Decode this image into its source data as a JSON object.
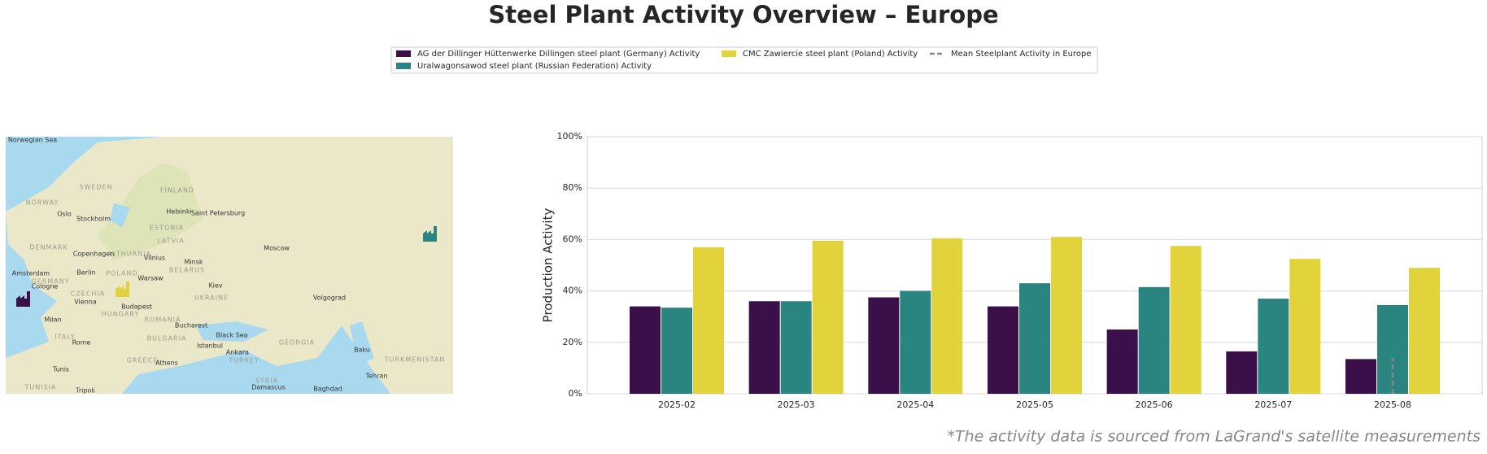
{
  "chart_data": {
    "type": "bar",
    "title": "Steel Plant Activity Overview – Europe",
    "ylabel": "Production Activity",
    "footnote": "*The activity data is sourced from LaGrand's satellite measurements",
    "categories": [
      "2025-02",
      "2025-03",
      "2025-04",
      "2025-05",
      "2025-06",
      "2025-07",
      "2025-08"
    ],
    "series": [
      {
        "name": "AG der Dillinger Hüttenwerke Dillingen steel plant (Germany) Activity",
        "color": "#3b0f4a",
        "values": [
          34,
          36,
          37.5,
          34,
          25,
          16.5,
          13.5
        ]
      },
      {
        "name": "Uralwagonsawod steel plant (Russian Federation) Activity",
        "color": "#2a8480",
        "values": [
          33.5,
          36,
          40,
          43,
          41.5,
          37,
          34.5
        ]
      },
      {
        "name": "CMC Zawiercie steel plant (Poland) Activity",
        "color": "#e2d23c",
        "values": [
          57,
          59.5,
          60.5,
          61,
          57.5,
          52.5,
          49
        ]
      },
      {
        "name": "Mean Steelplant Activity in Europe",
        "color": "#888888",
        "style": "dashed",
        "values": [
          null,
          null,
          null,
          null,
          null,
          null,
          14
        ]
      }
    ],
    "ylim": [
      0,
      100
    ],
    "yticks": [
      {
        "value": 0,
        "label": "0%"
      },
      {
        "value": 20,
        "label": "20%"
      },
      {
        "value": 40,
        "label": "40%"
      },
      {
        "value": 60,
        "label": "60%"
      },
      {
        "value": 80,
        "label": "80%"
      },
      {
        "value": 100,
        "label": "100%"
      }
    ],
    "grid": true,
    "map_labels": [
      "Norwegian Sea",
      "SWEDEN",
      "FINLAND",
      "NORWAY",
      "Oslo",
      "Stockholm",
      "Helsinki",
      "Saint Petersburg",
      "ESTONIA",
      "LATVIA",
      "DENMARK",
      "Copenhagen",
      "LITHUANIA",
      "Moscow",
      "Minsk",
      "Vilnius",
      "Berlin",
      "Amsterdam",
      "POLAND",
      "Warsaw",
      "BELARUS",
      "GERMANY",
      "Cologne",
      "Kiev",
      "CZECHIA",
      "Vienna",
      "UKRAINE",
      "Volgograd",
      "Budapest",
      "HUNGARY",
      "Milan",
      "ROMANIA",
      "Bucharest",
      "ITALY",
      "Rome",
      "BULGARIA",
      "Black Sea",
      "GEORGIA",
      "Istanbul",
      "Ankara",
      "Baku",
      "TURKEY",
      "GREECE",
      "Athens",
      "Tunis",
      "TUNISIA",
      "Tripoli",
      "SYRIA",
      "Damascus",
      "Baghdad",
      "Tehran",
      "TURKMENISTAN"
    ]
  }
}
